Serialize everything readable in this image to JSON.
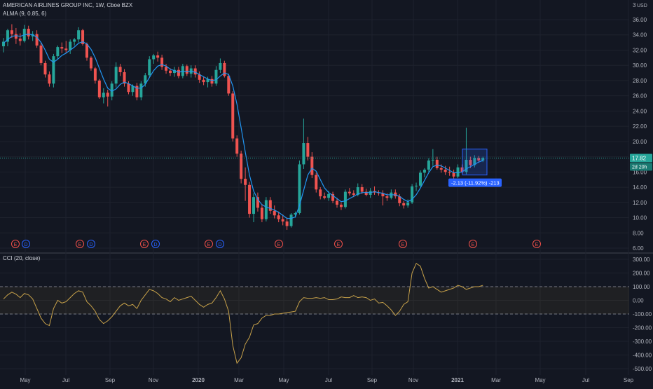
{
  "header": {
    "symbol_line": "AMERICAN AIRLINES GROUP INC, 1W, Cboe BZX",
    "indicator_line": "ALMA (9, 0.85, 6)",
    "cci_label": "CCI (20, close)"
  },
  "colors": {
    "background": "#131722",
    "up": "#26a69a",
    "down": "#ef5350",
    "alma": "#2196f3",
    "cci": "#c8a24a",
    "grid": "#1e222d",
    "axis_text": "#b2b5be",
    "event_circle": "#f0504a",
    "dividend_circle": "#2962ff"
  },
  "price_axis": {
    "currency": "USD",
    "top_label": "3",
    "ticks": [
      "36.00",
      "34.00",
      "32.00",
      "30.00",
      "28.00",
      "26.00",
      "24.00",
      "22.00",
      "20.00",
      "18.00",
      "16.00",
      "14.00",
      "12.00",
      "10.00",
      "8.00",
      "6.00"
    ],
    "last_price_label": "17.82",
    "countdown_label": "2d 20h"
  },
  "cci_axis": {
    "ticks": [
      "300.00",
      "200.00",
      "100.00",
      "0.00",
      "-100.00",
      "-200.00",
      "-300.00",
      "-400.00",
      "-500.00"
    ]
  },
  "time_axis": {
    "labels": [
      "May",
      "Jul",
      "Sep",
      "Nov",
      "2020",
      "Mar",
      "May",
      "Jul",
      "Sep",
      "Nov",
      "2021",
      "Mar",
      "May",
      "Jul",
      "Sep"
    ]
  },
  "events": {
    "earnings_letter": "E",
    "dividend_letter": "D"
  },
  "measure": {
    "label": "-2.13 (-11.92%) -213"
  },
  "chart_data": [
    {
      "type": "candlestick",
      "interval": "1W",
      "ylim": [
        6,
        37
      ],
      "series": [
        {
          "name": "price",
          "ohlc": [
            [
              32.5,
              33.6,
              31.7,
              33.1
            ],
            [
              33.1,
              34.8,
              32.5,
              34.6
            ],
            [
              34.6,
              35.4,
              33.6,
              34.1
            ],
            [
              34.1,
              34.9,
              32.8,
              33.5
            ],
            [
              33.5,
              34.2,
              32.6,
              33.2
            ],
            [
              33.2,
              35.3,
              33.0,
              34.8
            ],
            [
              34.8,
              35.2,
              33.4,
              33.8
            ],
            [
              33.8,
              34.5,
              33.2,
              34.1
            ],
            [
              34.1,
              34.6,
              32.3,
              32.6
            ],
            [
              32.6,
              33.0,
              30.0,
              30.3
            ],
            [
              30.3,
              30.6,
              28.4,
              28.8
            ],
            [
              28.8,
              29.2,
              27.2,
              27.6
            ],
            [
              27.6,
              31.5,
              27.1,
              31.2
            ],
            [
              31.2,
              32.6,
              30.8,
              32.4
            ],
            [
              32.4,
              33.0,
              31.6,
              32.2
            ],
            [
              32.2,
              33.2,
              31.6,
              32.0
            ],
            [
              32.0,
              33.4,
              31.5,
              33.1
            ],
            [
              33.1,
              33.6,
              32.6,
              33.4
            ],
            [
              33.4,
              35.0,
              33.0,
              34.6
            ],
            [
              34.6,
              34.8,
              32.6,
              32.8
            ],
            [
              32.8,
              33.0,
              30.6,
              31.0
            ],
            [
              31.0,
              31.2,
              29.3,
              29.6
            ],
            [
              29.6,
              29.8,
              27.6,
              28.0
            ],
            [
              28.0,
              28.2,
              25.6,
              25.8
            ],
            [
              25.8,
              27.0,
              25.0,
              26.4
            ],
            [
              26.4,
              26.8,
              24.6,
              25.9
            ],
            [
              25.9,
              27.9,
              25.4,
              27.6
            ],
            [
              27.6,
              30.4,
              27.1,
              29.8
            ],
            [
              29.8,
              30.2,
              28.6,
              29.1
            ],
            [
              29.1,
              29.5,
              27.2,
              27.6
            ],
            [
              27.6,
              27.9,
              26.2,
              26.5
            ],
            [
              26.5,
              27.5,
              26.0,
              27.3
            ],
            [
              27.3,
              27.7,
              25.4,
              25.8
            ],
            [
              25.8,
              27.9,
              25.4,
              27.6
            ],
            [
              27.6,
              29.0,
              27.2,
              28.7
            ],
            [
              28.7,
              31.2,
              28.4,
              30.8
            ],
            [
              30.8,
              31.5,
              30.2,
              31.3
            ],
            [
              31.3,
              31.8,
              30.5,
              31.0
            ],
            [
              31.0,
              31.4,
              29.4,
              29.8
            ],
            [
              29.8,
              30.2,
              28.9,
              29.3
            ],
            [
              29.3,
              29.6,
              28.6,
              29.0
            ],
            [
              29.0,
              29.8,
              28.5,
              29.4
            ],
            [
              29.4,
              29.8,
              28.3,
              28.6
            ],
            [
              28.6,
              30.2,
              28.3,
              29.9
            ],
            [
              29.9,
              30.1,
              28.6,
              28.9
            ],
            [
              28.9,
              30.0,
              28.4,
              29.6
            ],
            [
              29.6,
              30.0,
              28.4,
              28.8
            ],
            [
              28.8,
              29.2,
              27.7,
              28.1
            ],
            [
              28.1,
              28.5,
              27.4,
              27.8
            ],
            [
              27.8,
              28.5,
              27.1,
              28.2
            ],
            [
              28.2,
              28.6,
              27.2,
              27.6
            ],
            [
              27.6,
              29.9,
              27.3,
              29.4
            ],
            [
              29.4,
              30.9,
              29.0,
              30.3
            ],
            [
              30.3,
              30.6,
              28.4,
              28.6
            ],
            [
              28.6,
              28.9,
              26.0,
              26.3
            ],
            [
              26.3,
              26.6,
              20.0,
              20.4
            ],
            [
              20.4,
              20.8,
              18.0,
              18.4
            ],
            [
              18.4,
              18.8,
              14.5,
              15.1
            ],
            [
              15.1,
              16.6,
              12.2,
              14.3
            ],
            [
              14.3,
              14.7,
              10.0,
              10.5
            ],
            [
              10.5,
              13.2,
              9.4,
              12.7
            ],
            [
              12.7,
              13.3,
              10.8,
              11.3
            ],
            [
              11.3,
              11.8,
              9.4,
              9.8
            ],
            [
              9.8,
              12.7,
              9.5,
              12.3
            ],
            [
              12.3,
              12.7,
              10.5,
              10.9
            ],
            [
              10.9,
              11.6,
              9.9,
              10.3
            ],
            [
              10.3,
              10.8,
              9.4,
              9.8
            ],
            [
              9.8,
              10.4,
              9.0,
              9.5
            ],
            [
              9.5,
              10.0,
              8.4,
              8.9
            ],
            [
              8.9,
              10.6,
              8.7,
              10.4
            ],
            [
              10.4,
              10.8,
              10.0,
              10.6
            ],
            [
              10.6,
              17.5,
              10.4,
              17.0
            ],
            [
              17.0,
              23.0,
              16.4,
              19.8
            ],
            [
              19.8,
              20.6,
              17.5,
              18.0
            ],
            [
              18.0,
              18.6,
              15.2,
              15.6
            ],
            [
              15.6,
              15.9,
              13.3,
              13.7
            ],
            [
              13.7,
              14.0,
              12.4,
              12.8
            ],
            [
              12.8,
              13.3,
              12.4,
              12.6
            ],
            [
              12.6,
              13.5,
              12.2,
              13.1
            ],
            [
              13.1,
              13.4,
              11.9,
              12.2
            ],
            [
              12.2,
              12.6,
              11.3,
              11.7
            ],
            [
              11.7,
              12.0,
              11.0,
              11.4
            ],
            [
              11.4,
              13.7,
              11.2,
              13.4
            ],
            [
              13.4,
              13.9,
              12.9,
              13.2
            ],
            [
              13.2,
              13.6,
              12.7,
              13.0
            ],
            [
              13.0,
              14.5,
              12.8,
              14.0
            ],
            [
              14.0,
              14.4,
              13.1,
              13.4
            ],
            [
              13.4,
              13.8,
              12.8,
              13.0
            ],
            [
              13.0,
              13.9,
              12.6,
              13.5
            ],
            [
              13.5,
              14.1,
              13.0,
              13.3
            ],
            [
              13.3,
              13.6,
              12.9,
              13.2
            ],
            [
              13.2,
              13.6,
              11.6,
              12.8
            ],
            [
              12.8,
              13.2,
              12.2,
              12.6
            ],
            [
              12.6,
              13.7,
              12.4,
              13.3
            ],
            [
              13.3,
              13.7,
              12.5,
              12.8
            ],
            [
              12.8,
              13.1,
              11.5,
              11.9
            ],
            [
              11.9,
              12.2,
              11.2,
              11.6
            ],
            [
              11.6,
              12.4,
              11.3,
              12.0
            ],
            [
              12.0,
              14.4,
              11.8,
              14.1
            ],
            [
              14.1,
              14.6,
              13.5,
              14.2
            ],
            [
              14.2,
              16.2,
              14.0,
              15.9
            ],
            [
              15.9,
              16.5,
              15.3,
              16.3
            ],
            [
              16.3,
              17.8,
              16.0,
              17.5
            ],
            [
              17.5,
              19.0,
              16.8,
              17.6
            ],
            [
              17.6,
              18.0,
              16.3,
              16.5
            ],
            [
              16.5,
              17.0,
              15.9,
              16.3
            ],
            [
              16.3,
              16.8,
              15.6,
              16.0
            ],
            [
              16.0,
              16.7,
              15.5,
              15.9
            ],
            [
              15.9,
              16.3,
              15.0,
              15.4
            ],
            [
              15.4,
              17.0,
              15.2,
              16.6
            ],
            [
              16.6,
              17.0,
              15.8,
              16.0
            ],
            [
              16.0,
              21.8,
              15.7,
              17.6
            ],
            [
              17.6,
              18.0,
              16.5,
              16.9
            ],
            [
              16.9,
              18.2,
              16.6,
              17.8
            ],
            [
              17.8,
              18.1,
              17.2,
              17.5
            ],
            [
              17.5,
              18.0,
              17.3,
              17.82
            ]
          ]
        },
        {
          "name": "ALMA (9, 0.85, 6)",
          "values": [
            32.9,
            33.4,
            33.8,
            33.9,
            33.8,
            34.0,
            34.1,
            34.0,
            33.7,
            33.0,
            32.0,
            30.8,
            30.4,
            30.8,
            31.3,
            31.6,
            32.0,
            32.4,
            32.9,
            33.1,
            32.8,
            32.1,
            31.0,
            29.6,
            28.2,
            27.0,
            26.6,
            26.9,
            27.5,
            27.8,
            27.6,
            27.3,
            27.0,
            27.0,
            27.5,
            28.4,
            29.3,
            29.9,
            30.1,
            29.9,
            29.5,
            29.3,
            29.1,
            29.2,
            29.2,
            29.2,
            29.1,
            28.8,
            28.5,
            28.2,
            28.0,
            28.1,
            28.6,
            29.0,
            28.8,
            27.3,
            24.9,
            21.8,
            18.6,
            15.6,
            13.5,
            12.4,
            11.7,
            11.4,
            11.2,
            11.0,
            10.7,
            10.3,
            9.9,
            9.9,
            10.1,
            11.6,
            13.6,
            15.6,
            16.5,
            16.1,
            15.0,
            13.9,
            13.3,
            12.9,
            12.5,
            12.1,
            12.2,
            12.5,
            12.8,
            13.1,
            13.3,
            13.3,
            13.3,
            13.4,
            13.3,
            13.2,
            13.0,
            13.0,
            13.0,
            12.8,
            12.4,
            12.1,
            12.4,
            13.0,
            13.9,
            14.9,
            15.9,
            16.7,
            16.9,
            16.8,
            16.5,
            16.2,
            15.9,
            15.9,
            16.0,
            16.4,
            16.7,
            17.0,
            17.3,
            17.5
          ]
        }
      ]
    },
    {
      "type": "line",
      "ylim": [
        -520,
        330
      ],
      "series": [
        {
          "name": "CCI (20, close)",
          "values": [
            10,
            40,
            60,
            45,
            20,
            50,
            40,
            10,
            -60,
            -130,
            -170,
            -185,
            -60,
            0,
            -20,
            -10,
            20,
            50,
            70,
            60,
            -10,
            -40,
            -80,
            -140,
            -170,
            -150,
            -120,
            -80,
            -40,
            -20,
            -40,
            -30,
            -60,
            0,
            40,
            80,
            70,
            50,
            20,
            10,
            -10,
            20,
            0,
            10,
            20,
            30,
            0,
            -30,
            -50,
            -30,
            -20,
            20,
            70,
            10,
            -80,
            -330,
            -460,
            -420,
            -320,
            -270,
            -180,
            -170,
            -130,
            -110,
            -110,
            -100,
            -100,
            -95,
            -90,
            -85,
            -80,
            -10,
            20,
            15,
            15,
            20,
            15,
            20,
            5,
            5,
            10,
            25,
            20,
            20,
            35,
            20,
            25,
            20,
            0,
            10,
            -20,
            -15,
            -40,
            -70,
            -110,
            -80,
            -30,
            -10,
            200,
            270,
            250,
            160,
            90,
            100,
            80,
            60,
            70,
            80,
            90,
            110,
            100,
            80,
            90,
            100,
            100,
            110
          ]
        }
      ],
      "reference_lines": [
        100,
        -100
      ]
    }
  ]
}
